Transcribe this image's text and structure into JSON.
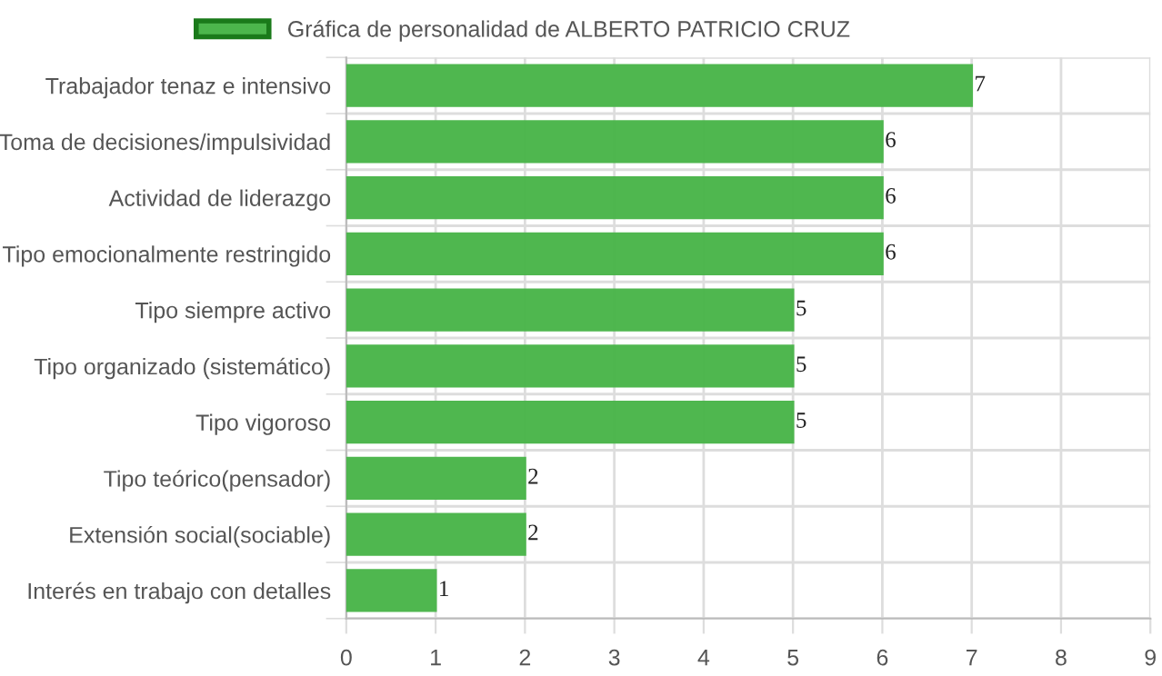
{
  "chart_data": {
    "type": "bar",
    "orientation": "horizontal",
    "categories": [
      "Trabajador tenaz e intensivo",
      "Toma de decisiones/impulsividad",
      "Actividad de liderazgo",
      "Tipo emocionalmente restringido",
      "Tipo siempre activo",
      "Tipo organizado (sistemático)",
      "Tipo vigoroso",
      "Tipo teórico(pensador)",
      "Extensión social(sociable)",
      "Interés en trabajo con detalles"
    ],
    "series": [
      {
        "name": "Gráfica de personalidad de ALBERTO PATRICIO CRUZ",
        "color": "#4cb64c",
        "values": [
          7,
          6,
          6,
          6,
          5,
          5,
          5,
          2,
          2,
          1
        ]
      }
    ],
    "xlim": [
      0,
      9
    ],
    "xticks": [
      0,
      1,
      2,
      3,
      4,
      5,
      6,
      7,
      8,
      9
    ],
    "grid": true,
    "legend": "top",
    "data_labels": true
  }
}
